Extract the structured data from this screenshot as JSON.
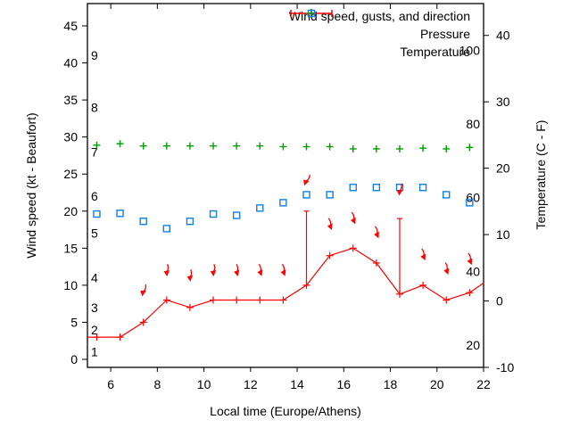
{
  "chart_data": {
    "type": "line",
    "title": "",
    "xlabel": "Local time (Europe/Athens)",
    "ylabel_left": "Wind speed (kt - Beaufort)",
    "ylabel_right": "Temperature (C - F)",
    "x_range": [
      5,
      22
    ],
    "x_ticks": [
      6,
      8,
      10,
      12,
      14,
      16,
      18,
      20,
      22
    ],
    "y_left_ticks": [
      0,
      5,
      10,
      15,
      20,
      25,
      30,
      35,
      40,
      45
    ],
    "y_left_range": [
      -1.1,
      48.0
    ],
    "y_right_ticks": [
      -10,
      0,
      10,
      20,
      30,
      40
    ],
    "y_right_range": [
      -10,
      44.8
    ],
    "grid": false,
    "legend_position": "top-right-inside",
    "beaufort_scale_labels": [
      {
        "label": "1",
        "kt": 1
      },
      {
        "label": "2",
        "kt": 4
      },
      {
        "label": "3",
        "kt": 7
      },
      {
        "label": "4",
        "kt": 11
      },
      {
        "label": "5",
        "kt": 17
      },
      {
        "label": "6",
        "kt": 22
      },
      {
        "label": "7",
        "kt": 28
      },
      {
        "label": "8",
        "kt": 34
      },
      {
        "label": "9",
        "kt": 41
      }
    ],
    "fahrenheit_scale_labels": [
      {
        "label": "20",
        "f": 20
      },
      {
        "label": "40",
        "f": 40
      },
      {
        "label": "60",
        "f": 60
      },
      {
        "label": "80",
        "f": 80
      },
      {
        "label": "100",
        "f": 100
      }
    ],
    "x": [
      5.4,
      6.4,
      7.4,
      8.4,
      9.4,
      10.4,
      11.4,
      12.4,
      13.4,
      14.4,
      15.4,
      16.4,
      17.4,
      18.4,
      19.4,
      20.4,
      21.4
    ],
    "series": [
      {
        "name": "Wind speed, gusts, and direction",
        "type": "line-errorbars",
        "axis": "left",
        "values": [
          3,
          3,
          5,
          8,
          7,
          8,
          8,
          8,
          8,
          10,
          14,
          15,
          13,
          8.8,
          10,
          8,
          9
        ],
        "line_start": {
          "x": 5,
          "y": 3
        },
        "line_end": {
          "x": 22,
          "y": 10.3
        },
        "gusts": [
          {
            "x": 14.4,
            "low": 10,
            "high": 20
          },
          {
            "x": 18.4,
            "low": 8.8,
            "high": 19
          }
        ],
        "direction_arrows": [
          {
            "x": 7.4,
            "v": 9.3,
            "rot": 15
          },
          {
            "x": 8.4,
            "v": 12.0,
            "rot": 0
          },
          {
            "x": 9.4,
            "v": 11.3,
            "rot": 0
          },
          {
            "x": 10.4,
            "v": 12.0,
            "rot": 0
          },
          {
            "x": 11.4,
            "v": 12.0,
            "rot": -8
          },
          {
            "x": 12.4,
            "v": 12.0,
            "rot": -15
          },
          {
            "x": 13.4,
            "v": 12.0,
            "rot": -15
          },
          {
            "x": 14.4,
            "v": 24.2,
            "rot": 25
          },
          {
            "x": 15.4,
            "v": 18.2,
            "rot": -18
          },
          {
            "x": 16.4,
            "v": 19.0,
            "rot": -18
          },
          {
            "x": 17.4,
            "v": 17.1,
            "rot": -18
          },
          {
            "x": 18.4,
            "v": 22.9,
            "rot": 8
          },
          {
            "x": 19.4,
            "v": 14.1,
            "rot": -18
          },
          {
            "x": 20.4,
            "v": 12.2,
            "rot": -15
          },
          {
            "x": 21.4,
            "v": 13.5,
            "rot": -18
          }
        ]
      },
      {
        "name": "Pressure",
        "type": "points",
        "marker": "plus",
        "axis": "left",
        "values": [
          28.9,
          29.1,
          28.8,
          28.8,
          28.8,
          28.8,
          28.8,
          28.8,
          28.7,
          28.7,
          28.7,
          28.4,
          28.4,
          28.4,
          28.5,
          28.4,
          28.6
        ]
      },
      {
        "name": "Temperature",
        "type": "points",
        "marker": "open-square",
        "axis": "right",
        "values": [
          13.1,
          13.2,
          12.0,
          10.9,
          12.0,
          13.1,
          12.9,
          14.0,
          14.8,
          16.0,
          16.0,
          17.1,
          17.1,
          17.1,
          17.1,
          16.0,
          14.8
        ]
      }
    ],
    "colors": {
      "wind": "#ff0000",
      "pressure": "#00a000",
      "temperature": "#1080e8",
      "axis": "#000000"
    }
  }
}
